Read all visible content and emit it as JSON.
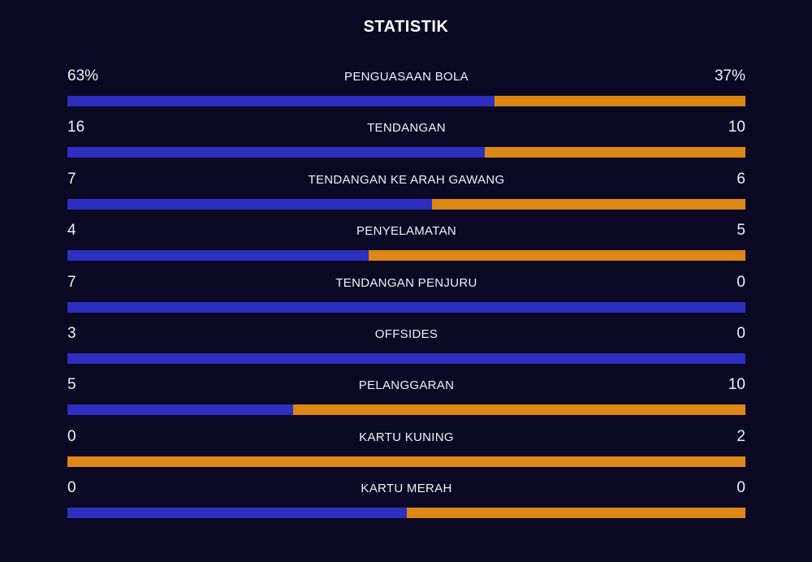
{
  "title": "STATISTIK",
  "colors": {
    "background": "#0a0822",
    "home": "#2c2fc0",
    "away": "#dd8716",
    "text": "#f2f2f7"
  },
  "stats": [
    {
      "label": "PENGUASAAN BOLA",
      "home": "63%",
      "away": "37%",
      "home_share": 0.63
    },
    {
      "label": "TENDANGAN",
      "home": "16",
      "away": "10",
      "home_share": 0.615
    },
    {
      "label": "TENDANGAN KE ARAH GAWANG",
      "home": "7",
      "away": "6",
      "home_share": 0.538
    },
    {
      "label": "PENYELAMATAN",
      "home": "4",
      "away": "5",
      "home_share": 0.444
    },
    {
      "label": "TENDANGAN PENJURU",
      "home": "7",
      "away": "0",
      "home_share": 1.0
    },
    {
      "label": "OFFSIDES",
      "home": "3",
      "away": "0",
      "home_share": 1.0
    },
    {
      "label": "PELANGGARAN",
      "home": "5",
      "away": "10",
      "home_share": 0.333
    },
    {
      "label": "KARTU KUNING",
      "home": "0",
      "away": "2",
      "home_share": 0.0
    },
    {
      "label": "KARTU MERAH",
      "home": "0",
      "away": "0",
      "home_share": 0.5
    }
  ]
}
